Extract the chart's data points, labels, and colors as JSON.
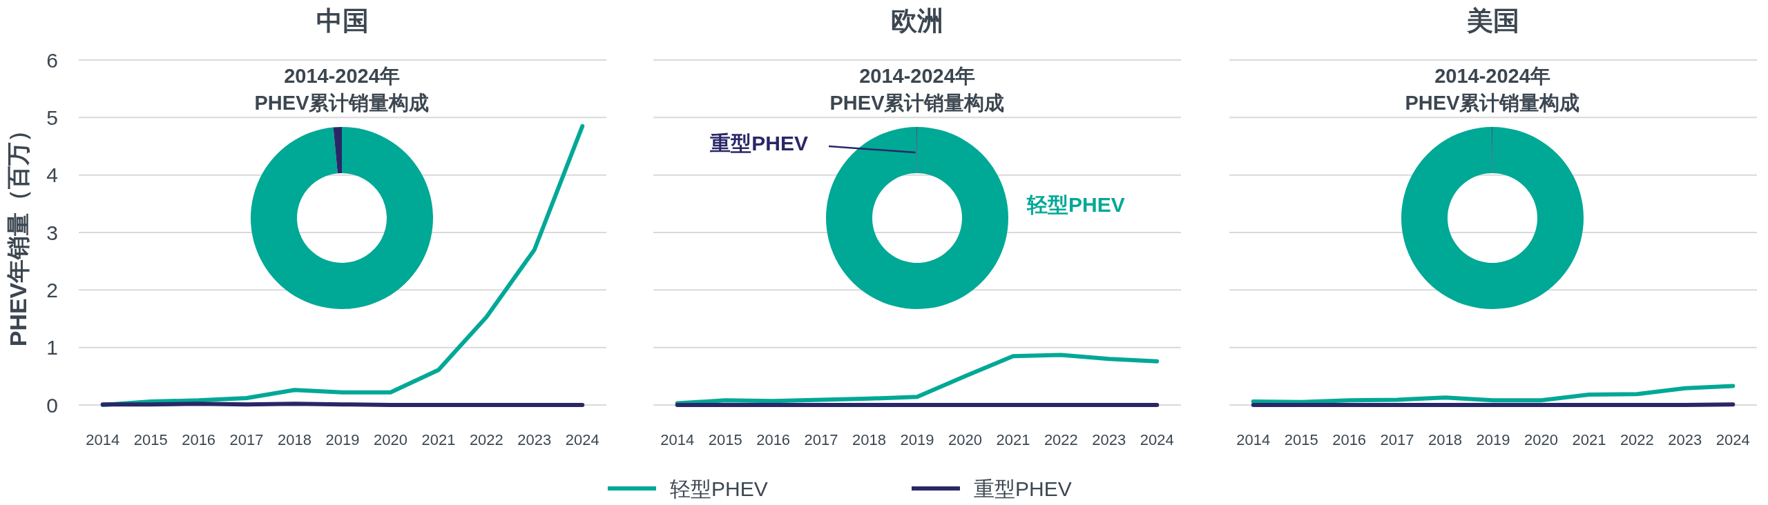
{
  "chart_data": [
    {
      "type": "line",
      "title": "中国",
      "ylabel": "PHEV年销量（百万）",
      "categories": [
        "2014",
        "2015",
        "2016",
        "2017",
        "2018",
        "2019",
        "2020",
        "2021",
        "2022",
        "2023",
        "2024"
      ],
      "ylim": [
        0,
        6
      ],
      "yticks": [
        0,
        1,
        2,
        3,
        4,
        5,
        6
      ],
      "grid": "y",
      "legend": "bottom",
      "series": [
        {
          "name": "轻型PHEV",
          "color": "#00a896",
          "values": [
            0.0,
            0.06,
            0.08,
            0.12,
            0.26,
            0.22,
            0.22,
            0.61,
            1.53,
            2.7,
            4.85
          ]
        },
        {
          "name": "重型PHEV",
          "color": "#2a2767",
          "values": [
            0.01,
            0.01,
            0.02,
            0.01,
            0.02,
            0.01,
            0,
            0,
            0,
            0,
            0
          ]
        }
      ]
    },
    {
      "type": "donut",
      "title": "2014-2024年\nPHEV累计销量构成",
      "categories": [
        null,
        null
      ],
      "values": [
        98.5,
        1.5
      ],
      "colors": [
        "#00a896",
        "#2a2767"
      ]
    },
    {
      "type": "line",
      "title": "欧洲",
      "categories": [
        "2014",
        "2015",
        "2016",
        "2017",
        "2018",
        "2019",
        "2020",
        "2021",
        "2022",
        "2023",
        "2024"
      ],
      "ylim": [
        0,
        6
      ],
      "yticks": [
        0,
        1,
        2,
        3,
        4,
        5,
        6
      ],
      "grid": "y",
      "tick_labels": "x",
      "series": [
        {
          "color": "#00a896",
          "values": [
            0.03,
            0.08,
            0.07,
            0.09,
            0.11,
            0.14,
            0.5,
            0.85,
            0.87,
            0.8,
            0.76
          ]
        },
        {
          "color": "#2a2767",
          "values": [
            0,
            0,
            0,
            0,
            0,
            0,
            0,
            0,
            0,
            0,
            0
          ]
        }
      ]
    },
    {
      "type": "donut",
      "title": "2014-2024年\nPHEV累计销量构成",
      "categories": [
        "轻型PHEV",
        "重型PHEV"
      ],
      "values": [
        99.9,
        0.1
      ],
      "colors": [
        "#00a896",
        "#2a2767"
      ]
    },
    {
      "type": "line",
      "title": "美国",
      "categories": [
        "2014",
        "2015",
        "2016",
        "2017",
        "2018",
        "2019",
        "2020",
        "2021",
        "2022",
        "2023",
        "2024"
      ],
      "ylim": [
        0,
        6
      ],
      "yticks": [
        0,
        1,
        2,
        3,
        4,
        5,
        6
      ],
      "grid": "y",
      "tick_labels": "x",
      "series": [
        {
          "color": "#00a896",
          "values": [
            0.06,
            0.05,
            0.08,
            0.09,
            0.13,
            0.08,
            0.08,
            0.18,
            0.19,
            0.29,
            0.33
          ]
        },
        {
          "color": "#2a2767",
          "values": [
            0,
            0,
            0,
            0,
            0,
            0,
            0,
            0,
            0,
            0,
            0.01
          ]
        }
      ]
    },
    {
      "type": "donut",
      "title": "2014-2024年\nPHEV累计销量构成",
      "categories": [
        null,
        null
      ],
      "values": [
        99.9,
        0.1
      ],
      "colors": [
        "#00a896",
        "#2a2767"
      ]
    }
  ]
}
